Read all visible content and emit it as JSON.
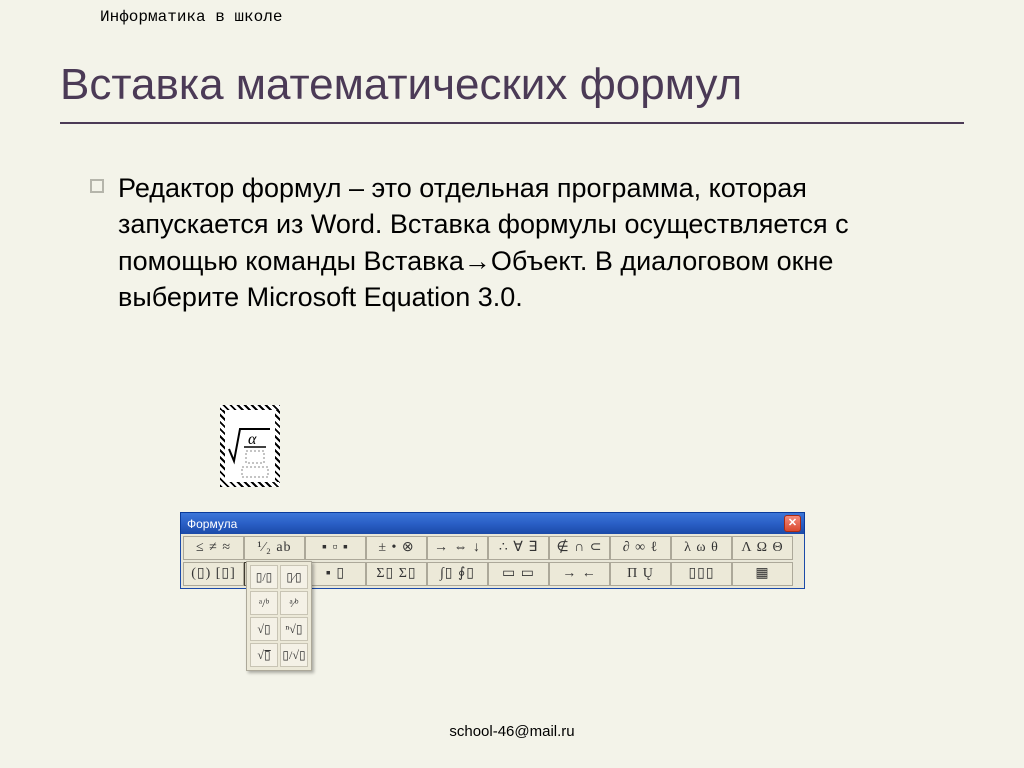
{
  "header": {
    "text": "Информатика в школе"
  },
  "title": "Вставка математических формул",
  "body": {
    "text": "Редактор формул – это отдельная программа, которая запускается из Word. Вставка формулы осуществляется с помощью команды Вставка→Объект. В диалоговом окне выберите Microsoft Equation 3.0."
  },
  "footer": "school-46@mail.ru",
  "equation_object": {
    "symbol": "α"
  },
  "toolbar": {
    "title": "Формула",
    "colors": {
      "titlebar_start": "#3c76d8",
      "titlebar_end": "#1b4aa8",
      "body_bg": "#e9e7d8",
      "cell_bg": "#ece9d8",
      "cell_border": "#aca899",
      "close_bg": "#d94a30"
    },
    "row1": [
      "≤ ≠ ≈",
      "¹⁄₂ ab",
      "▪ ▫ ▪",
      "± • ⊗",
      "→ ⇔ ↓",
      "∴ ∀ ∃",
      "∉ ∩ ⊂",
      "∂ ∞ ℓ",
      "λ ω θ",
      "Λ Ω Θ"
    ],
    "row2": [
      "(▯) [▯]",
      "▯/▯ √▯",
      "▪ ▯",
      "Σ▯ Σ▯",
      "∫▯ ∮▯",
      "▭ ▭",
      "→ ←",
      "Π  Ų",
      "▯▯▯",
      "▦"
    ],
    "pressed_index": 11,
    "dropdown": [
      "▯/▯",
      "▯⁄▯",
      "ᵃ/ᵇ",
      "ᵃ⁄ᵇ",
      "√▯",
      "ⁿ√▯",
      "√▯̅",
      "▯/√▯"
    ]
  }
}
